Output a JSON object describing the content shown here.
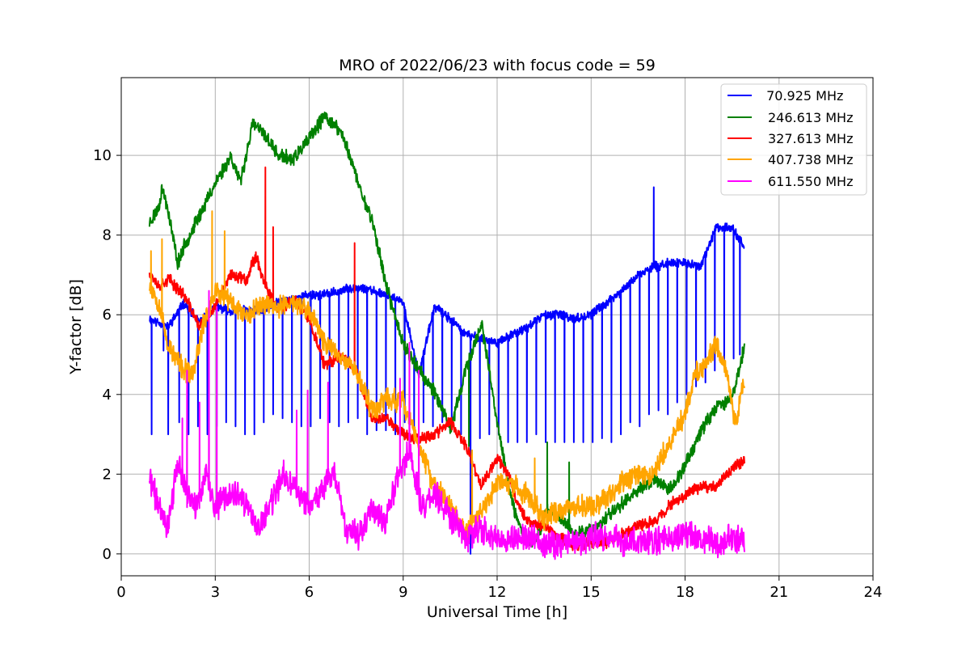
{
  "chart_data": {
    "type": "line",
    "title": "MRO of 2022/06/23 with focus code = 59",
    "xlabel": "Universal Time [h]",
    "ylabel": "Y-factor [dB]",
    "xlim": [
      0,
      24
    ],
    "ylim": [
      -0.55,
      11.95
    ],
    "xticks": [
      0,
      3,
      6,
      9,
      12,
      15,
      18,
      21,
      24
    ],
    "xtick_labels": [
      "0",
      "3",
      "6",
      "9",
      "12",
      "15",
      "18",
      "21",
      "24"
    ],
    "yticks": [
      0,
      2,
      4,
      6,
      8,
      10
    ],
    "ytick_labels": [
      "0",
      "2",
      "4",
      "6",
      "8",
      "10"
    ],
    "grid": true,
    "legend_position": "top-right",
    "series": [
      {
        "name": " 70.925 MHz",
        "color": "#0000ff",
        "base": [
          [
            0.9,
            5.9
          ],
          [
            1.5,
            5.7
          ],
          [
            2.0,
            6.3
          ],
          [
            2.5,
            5.8
          ],
          [
            3.0,
            6.2
          ],
          [
            3.5,
            6.1
          ],
          [
            4.5,
            6.1
          ],
          [
            5.0,
            6.3
          ],
          [
            5.5,
            6.4
          ],
          [
            6.0,
            6.5
          ],
          [
            6.5,
            6.5
          ],
          [
            7.5,
            6.7
          ],
          [
            8.0,
            6.6
          ],
          [
            8.5,
            6.5
          ],
          [
            9.0,
            6.3
          ],
          [
            9.5,
            4.5
          ],
          [
            10.0,
            6.2
          ],
          [
            10.5,
            5.9
          ],
          [
            11.0,
            5.5
          ],
          [
            11.5,
            5.4
          ],
          [
            12.0,
            5.3
          ],
          [
            12.5,
            5.5
          ],
          [
            13.0,
            5.7
          ],
          [
            13.5,
            6.0
          ],
          [
            14.0,
            6.0
          ],
          [
            14.5,
            5.9
          ],
          [
            15.0,
            6.0
          ],
          [
            15.5,
            6.3
          ],
          [
            16.0,
            6.6
          ],
          [
            16.5,
            7.0
          ],
          [
            17.0,
            7.2
          ],
          [
            17.5,
            7.3
          ],
          [
            18.0,
            7.3
          ],
          [
            18.5,
            7.2
          ],
          [
            19.0,
            8.2
          ],
          [
            19.5,
            8.2
          ],
          [
            19.9,
            7.7
          ]
        ],
        "spikes": [
          [
            0.97,
            3.0
          ],
          [
            1.35,
            5.1
          ],
          [
            1.5,
            3.0
          ],
          [
            1.85,
            3.3
          ],
          [
            2.15,
            3.0
          ],
          [
            2.45,
            3.2
          ],
          [
            2.75,
            3.0
          ],
          [
            3.05,
            3.2
          ],
          [
            3.35,
            3.3
          ],
          [
            3.65,
            3.2
          ],
          [
            3.95,
            3.0
          ],
          [
            4.25,
            3.0
          ],
          [
            4.55,
            3.3
          ],
          [
            4.85,
            3.5
          ],
          [
            5.15,
            3.4
          ],
          [
            5.45,
            3.3
          ],
          [
            5.75,
            3.2
          ],
          [
            6.05,
            3.2
          ],
          [
            6.35,
            3.4
          ],
          [
            6.65,
            3.3
          ],
          [
            6.95,
            3.2
          ],
          [
            7.25,
            3.3
          ],
          [
            7.55,
            3.4
          ],
          [
            7.85,
            3.0
          ],
          [
            8.15,
            3.1
          ],
          [
            8.45,
            3.1
          ],
          [
            8.75,
            3.0
          ],
          [
            9.05,
            3.3
          ],
          [
            9.35,
            3.2
          ],
          [
            9.65,
            3.3
          ],
          [
            9.95,
            3.2
          ],
          [
            10.25,
            3.3
          ],
          [
            10.55,
            3.2
          ],
          [
            10.85,
            3.0
          ],
          [
            11.15,
            0.0
          ],
          [
            11.45,
            2.9
          ],
          [
            11.75,
            3.0
          ],
          [
            12.05,
            3.0
          ],
          [
            12.35,
            2.8
          ],
          [
            12.65,
            2.8
          ],
          [
            12.95,
            2.8
          ],
          [
            13.25,
            3.0
          ],
          [
            13.55,
            2.8
          ],
          [
            13.85,
            2.8
          ],
          [
            14.15,
            2.8
          ],
          [
            14.45,
            2.8
          ],
          [
            14.75,
            2.8
          ],
          [
            15.05,
            2.8
          ],
          [
            15.35,
            2.9
          ],
          [
            15.65,
            2.8
          ],
          [
            15.95,
            3.0
          ],
          [
            16.25,
            3.3
          ],
          [
            16.55,
            3.2
          ],
          [
            16.85,
            3.5
          ],
          [
            17.15,
            3.6
          ],
          [
            17.45,
            3.5
          ],
          [
            17.75,
            3.8
          ],
          [
            18.05,
            4.0
          ],
          [
            18.35,
            4.2
          ],
          [
            18.65,
            4.3
          ],
          [
            18.95,
            4.6
          ],
          [
            19.25,
            4.7
          ],
          [
            19.55,
            4.9
          ],
          [
            19.75,
            5.0
          ]
        ],
        "peaks": [
          [
            17.0,
            9.2
          ]
        ],
        "noise": 0.09,
        "seed": 11
      },
      {
        "name": "246.613 MHz",
        "color": "#008000",
        "base": [
          [
            0.9,
            8.3
          ],
          [
            1.2,
            8.7
          ],
          [
            1.3,
            9.2
          ],
          [
            1.5,
            8.6
          ],
          [
            1.8,
            7.3
          ],
          [
            2.0,
            7.7
          ],
          [
            2.5,
            8.5
          ],
          [
            3.0,
            9.3
          ],
          [
            3.5,
            10.0
          ],
          [
            3.8,
            9.3
          ],
          [
            4.2,
            10.8
          ],
          [
            4.6,
            10.5
          ],
          [
            5.0,
            10.0
          ],
          [
            5.5,
            9.9
          ],
          [
            6.0,
            10.4
          ],
          [
            6.5,
            11.0
          ],
          [
            7.0,
            10.6
          ],
          [
            7.3,
            10.0
          ],
          [
            7.6,
            9.2
          ],
          [
            8.0,
            8.4
          ],
          [
            8.5,
            6.6
          ],
          [
            9.0,
            5.3
          ],
          [
            9.5,
            4.6
          ],
          [
            10.0,
            4.1
          ],
          [
            10.5,
            3.1
          ],
          [
            11.0,
            4.6
          ],
          [
            11.5,
            5.8
          ],
          [
            12.0,
            3.3
          ],
          [
            12.5,
            1.2
          ],
          [
            12.8,
            0.5
          ],
          [
            13.2,
            0.3
          ],
          [
            13.6,
            1.1
          ],
          [
            14.0,
            0.9
          ],
          [
            14.5,
            0.5
          ],
          [
            15.0,
            0.6
          ],
          [
            15.5,
            0.9
          ],
          [
            16.0,
            1.3
          ],
          [
            16.5,
            1.6
          ],
          [
            17.0,
            1.9
          ],
          [
            17.5,
            1.6
          ],
          [
            18.0,
            2.2
          ],
          [
            18.5,
            3.1
          ],
          [
            19.0,
            3.7
          ],
          [
            19.5,
            3.9
          ],
          [
            19.9,
            5.2
          ]
        ],
        "spikes": [
          [
            11.1,
            2.7
          ],
          [
            13.6,
            2.8
          ],
          [
            14.3,
            2.3
          ]
        ],
        "peaks": [],
        "noise": 0.14,
        "seed": 23
      },
      {
        "name": "327.613 MHz",
        "color": "#ff0000",
        "base": [
          [
            0.9,
            7.1
          ],
          [
            1.2,
            6.7
          ],
          [
            1.5,
            6.9
          ],
          [
            2.0,
            6.5
          ],
          [
            2.5,
            5.7
          ],
          [
            3.0,
            6.2
          ],
          [
            3.5,
            7.0
          ],
          [
            4.0,
            6.9
          ],
          [
            4.3,
            7.5
          ],
          [
            4.6,
            6.7
          ],
          [
            5.0,
            6.1
          ],
          [
            5.5,
            6.4
          ],
          [
            6.0,
            5.9
          ],
          [
            6.5,
            4.7
          ],
          [
            7.0,
            5.0
          ],
          [
            7.5,
            4.6
          ],
          [
            8.0,
            3.4
          ],
          [
            8.5,
            3.4
          ],
          [
            9.0,
            3.0
          ],
          [
            9.5,
            2.9
          ],
          [
            10.0,
            3.0
          ],
          [
            10.5,
            3.3
          ],
          [
            11.0,
            2.7
          ],
          [
            11.5,
            1.7
          ],
          [
            12.0,
            2.4
          ],
          [
            12.3,
            2.1
          ],
          [
            12.7,
            1.2
          ],
          [
            13.0,
            0.8
          ],
          [
            13.5,
            0.7
          ],
          [
            14.0,
            0.4
          ],
          [
            14.5,
            0.2
          ],
          [
            15.0,
            0.3
          ],
          [
            15.5,
            0.3
          ],
          [
            16.0,
            0.5
          ],
          [
            16.5,
            0.7
          ],
          [
            17.0,
            0.8
          ],
          [
            17.5,
            1.2
          ],
          [
            18.0,
            1.5
          ],
          [
            18.5,
            1.7
          ],
          [
            19.0,
            1.7
          ],
          [
            19.5,
            2.1
          ],
          [
            19.9,
            2.4
          ]
        ],
        "spikes": [],
        "peaks": [
          [
            4.6,
            9.7
          ],
          [
            7.45,
            7.8
          ],
          [
            4.85,
            8.2
          ]
        ],
        "noise": 0.12,
        "seed": 37
      },
      {
        "name": "407.738 MHz",
        "color": "#ffa500",
        "base": [
          [
            0.9,
            6.8
          ],
          [
            1.2,
            6.3
          ],
          [
            1.5,
            5.2
          ],
          [
            2.0,
            4.6
          ],
          [
            2.3,
            4.5
          ],
          [
            2.6,
            5.7
          ],
          [
            3.0,
            6.6
          ],
          [
            3.5,
            6.3
          ],
          [
            4.0,
            6.0
          ],
          [
            4.5,
            6.3
          ],
          [
            5.0,
            6.2
          ],
          [
            5.5,
            6.3
          ],
          [
            6.0,
            6.1
          ],
          [
            6.5,
            5.3
          ],
          [
            7.0,
            5.0
          ],
          [
            7.5,
            4.6
          ],
          [
            8.0,
            3.6
          ],
          [
            8.5,
            3.9
          ],
          [
            9.0,
            3.8
          ],
          [
            9.3,
            3.2
          ],
          [
            9.6,
            2.5
          ],
          [
            10.0,
            1.7
          ],
          [
            10.5,
            1.2
          ],
          [
            11.0,
            0.5
          ],
          [
            11.3,
            0.9
          ],
          [
            11.7,
            1.3
          ],
          [
            12.0,
            1.8
          ],
          [
            12.5,
            1.7
          ],
          [
            13.0,
            1.5
          ],
          [
            13.5,
            0.9
          ],
          [
            14.0,
            1.1
          ],
          [
            14.5,
            1.2
          ],
          [
            15.0,
            1.2
          ],
          [
            15.5,
            1.4
          ],
          [
            16.0,
            1.8
          ],
          [
            16.5,
            2.0
          ],
          [
            17.0,
            2.0
          ],
          [
            17.5,
            2.8
          ],
          [
            18.0,
            3.5
          ],
          [
            18.3,
            4.5
          ],
          [
            18.7,
            4.8
          ],
          [
            19.0,
            5.3
          ],
          [
            19.3,
            4.6
          ],
          [
            19.6,
            3.3
          ],
          [
            19.9,
            4.3
          ]
        ],
        "spikes": [],
        "peaks": [
          [
            0.95,
            7.6
          ],
          [
            2.9,
            8.6
          ],
          [
            3.3,
            8.1
          ],
          [
            11.2,
            2.6
          ],
          [
            13.2,
            2.4
          ],
          [
            1.3,
            7.9
          ]
        ],
        "noise": 0.22,
        "seed": 53
      },
      {
        "name": "611.550 MHz",
        "color": "#ff00ff",
        "base": [
          [
            0.9,
            1.9
          ],
          [
            1.2,
            1.2
          ],
          [
            1.5,
            0.7
          ],
          [
            1.8,
            2.3
          ],
          [
            2.1,
            1.5
          ],
          [
            2.4,
            1.2
          ],
          [
            2.7,
            2.0
          ],
          [
            3.0,
            1.1
          ],
          [
            3.3,
            1.4
          ],
          [
            3.6,
            1.5
          ],
          [
            4.0,
            1.2
          ],
          [
            4.4,
            0.6
          ],
          [
            4.8,
            1.3
          ],
          [
            5.2,
            2.0
          ],
          [
            5.6,
            1.6
          ],
          [
            6.0,
            1.2
          ],
          [
            6.4,
            1.6
          ],
          [
            6.8,
            2.0
          ],
          [
            7.2,
            0.5
          ],
          [
            7.6,
            0.5
          ],
          [
            8.0,
            1.2
          ],
          [
            8.4,
            0.8
          ],
          [
            8.8,
            1.9
          ],
          [
            9.2,
            2.6
          ],
          [
            9.6,
            1.2
          ],
          [
            10.0,
            1.5
          ],
          [
            10.5,
            0.9
          ],
          [
            11.0,
            0.4
          ],
          [
            11.5,
            0.6
          ],
          [
            12.0,
            0.3
          ],
          [
            12.5,
            0.4
          ],
          [
            13.0,
            0.4
          ],
          [
            13.5,
            0.3
          ],
          [
            14.0,
            0.2
          ],
          [
            14.5,
            0.3
          ],
          [
            15.0,
            0.4
          ],
          [
            15.5,
            0.4
          ],
          [
            16.0,
            0.3
          ],
          [
            16.5,
            0.3
          ],
          [
            17.0,
            0.3
          ],
          [
            17.5,
            0.4
          ],
          [
            18.0,
            0.5
          ],
          [
            18.5,
            0.4
          ],
          [
            19.0,
            0.3
          ],
          [
            19.5,
            0.4
          ],
          [
            19.9,
            0.3
          ]
        ],
        "spikes": [],
        "peaks": [
          [
            2.1,
            4.6
          ],
          [
            2.5,
            3.8
          ],
          [
            2.8,
            6.6
          ],
          [
            3.05,
            6.2
          ],
          [
            5.6,
            3.6
          ],
          [
            5.95,
            4.1
          ],
          [
            6.6,
            4.3
          ],
          [
            8.9,
            4.4
          ],
          [
            9.2,
            5.3
          ],
          [
            9.5,
            4.6
          ],
          [
            1.95,
            3.4
          ]
        ],
        "noise": 0.28,
        "seed": 71
      }
    ]
  }
}
